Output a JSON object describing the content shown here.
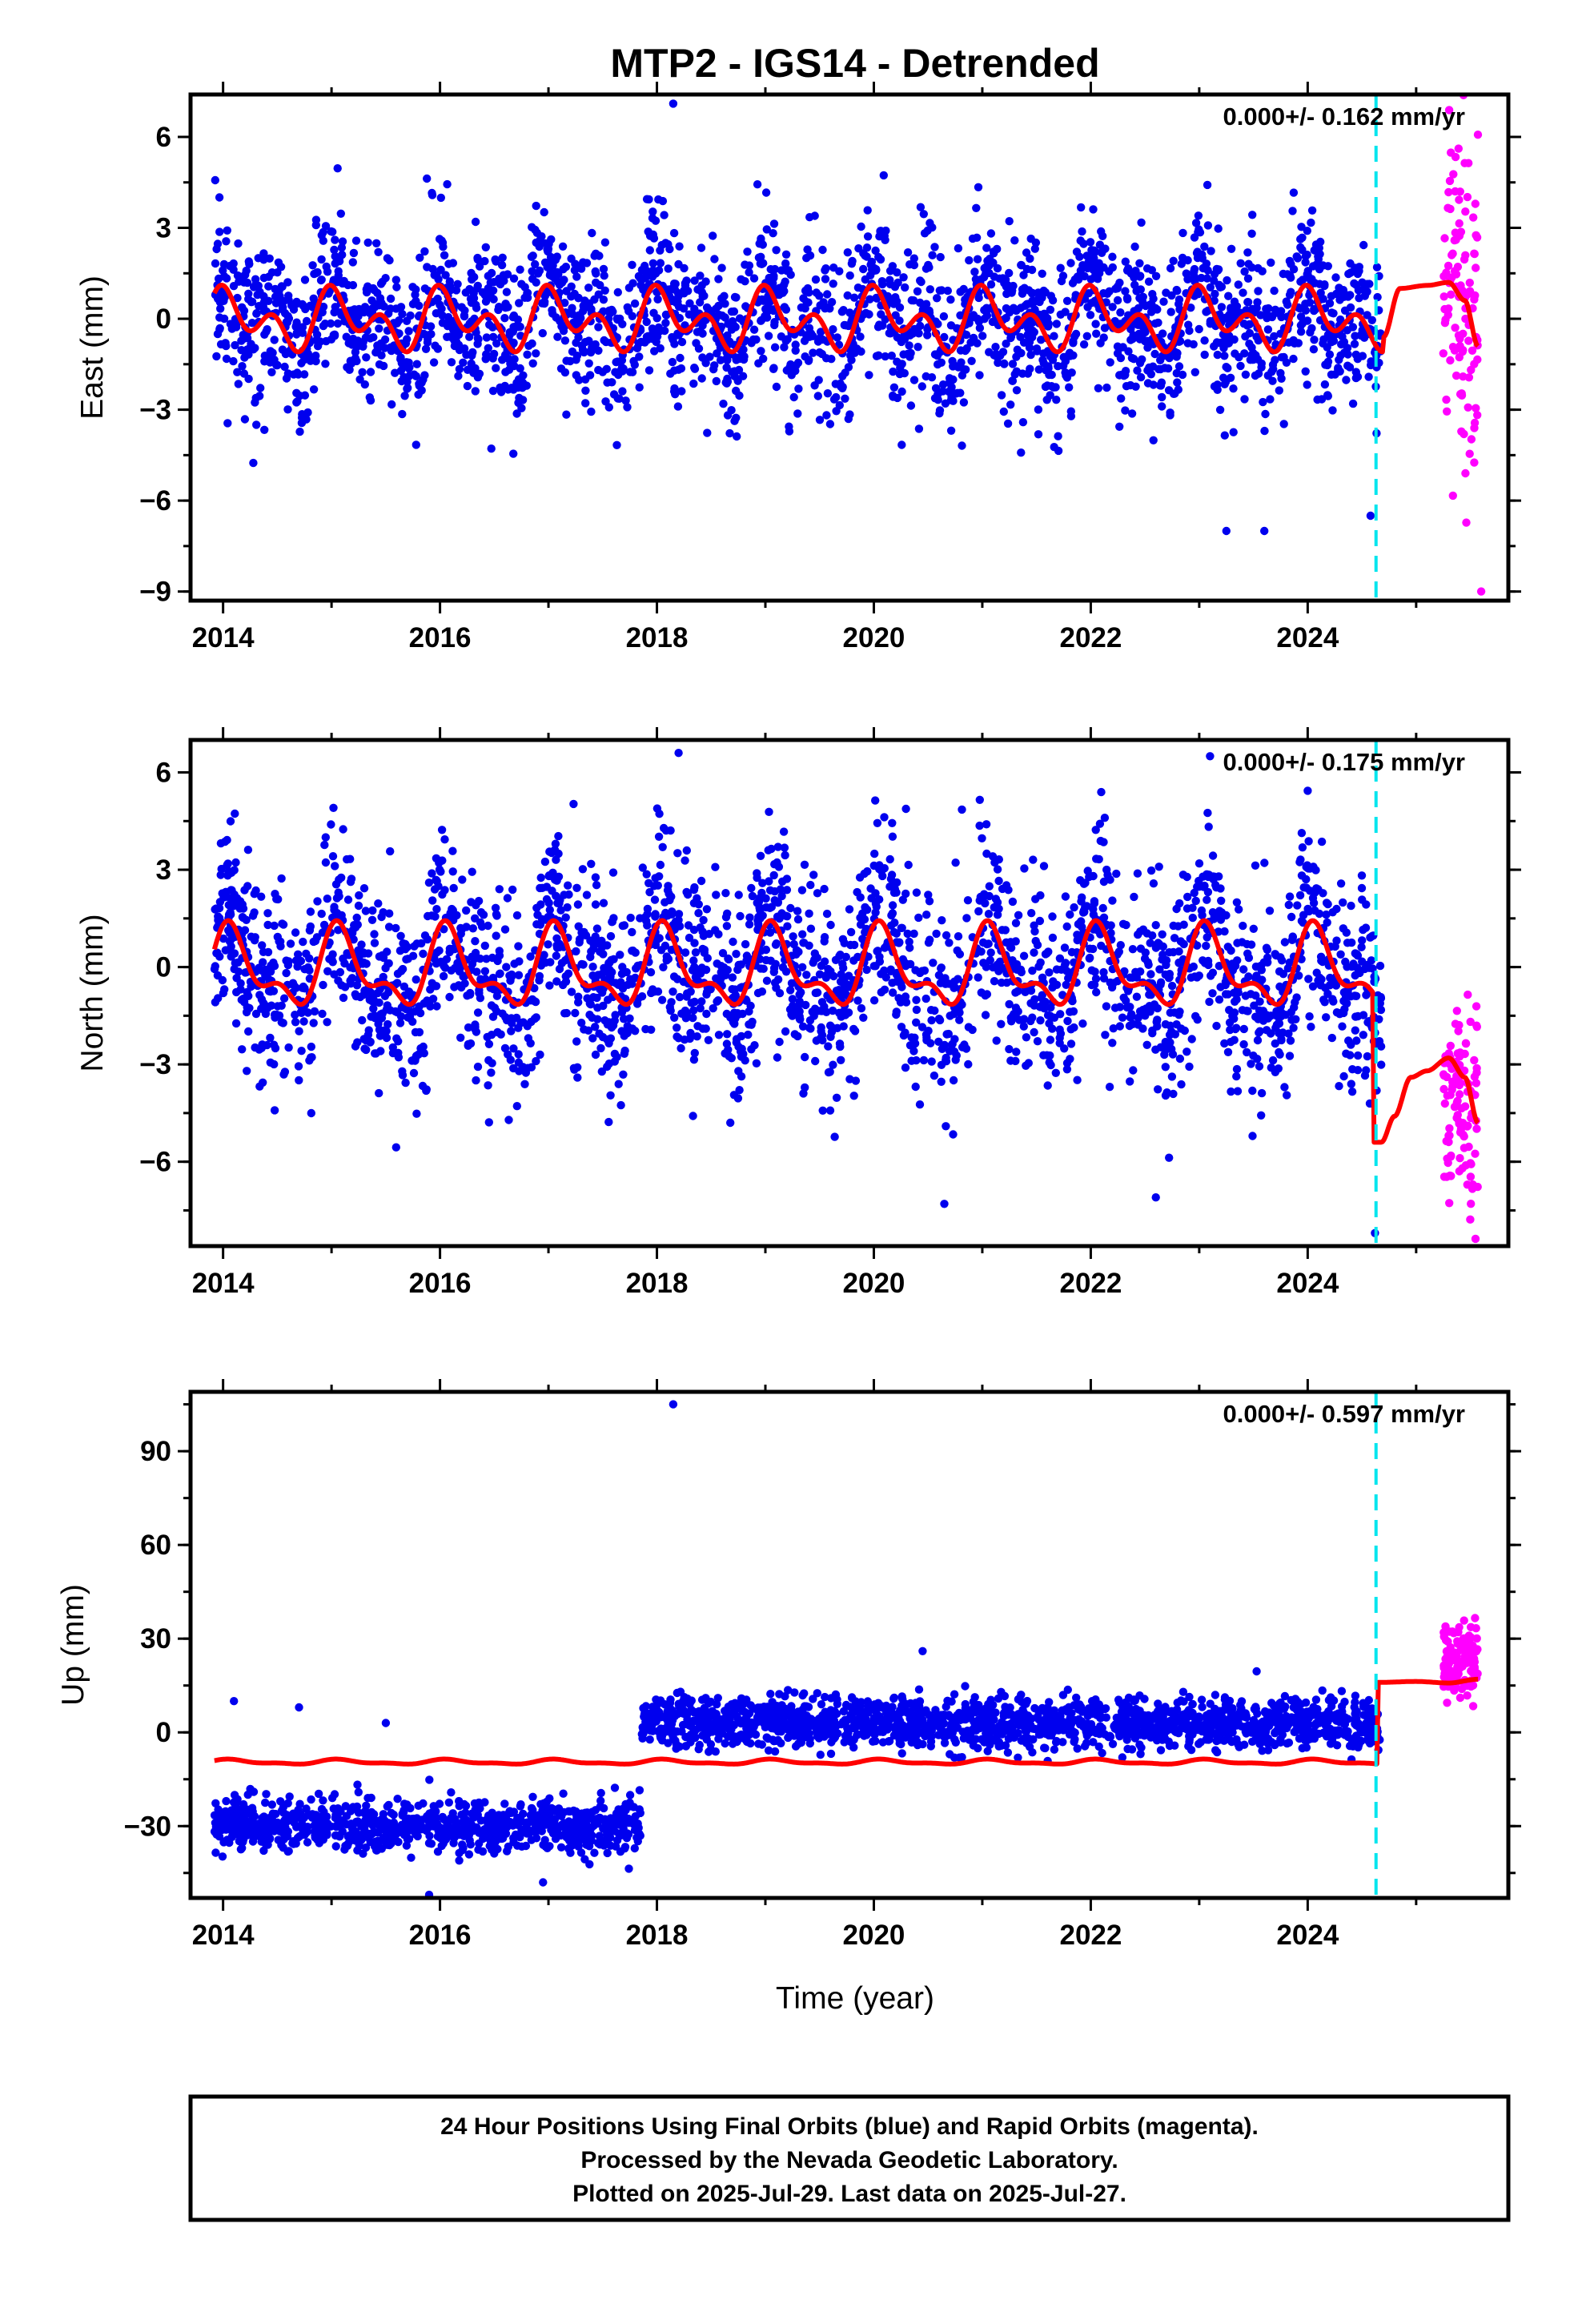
{
  "figure": {
    "title": "MTP2 - IGS14 - Detrended",
    "xlabel": "Time (year)",
    "colors": {
      "final_points": "#0000ee",
      "rapid_points": "#ff00ff",
      "model_line": "#ff0000",
      "event_line": "#00e5ee",
      "frame": "#000000"
    },
    "event_year": 2024.63,
    "footer": [
      "24 Hour Positions Using Final Orbits (blue) and Rapid Orbits (magenta).",
      "Processed by the Nevada Geodetic Laboratory.",
      "Plotted on 2025-Jul-29. Last data on 2025-Jul-27."
    ]
  },
  "chart_data": [
    {
      "type": "scatter",
      "component": "east",
      "ylabel": "East (mm)",
      "rate_annotation": "0.000+/- 0.162 mm/yr",
      "xlim": [
        2013.7,
        2025.85
      ],
      "ylim": [
        -9.3,
        7.4
      ],
      "xticks": [
        2014,
        2016,
        2018,
        2020,
        2022,
        2024
      ],
      "xtick_labels": [
        "2014",
        "2016",
        "2018",
        "2020",
        "2022",
        "2024"
      ],
      "yticks": [
        6,
        3,
        0,
        -3,
        -6,
        -9
      ],
      "ytick_labels": [
        "6",
        "3",
        "0",
        "−3",
        "−6",
        "−9"
      ],
      "final_range": [
        2013.92,
        2024.68
      ],
      "rapid_range": [
        2025.25,
        2025.57
      ],
      "series": [
        {
          "kind": "final",
          "mean_model": true,
          "scatter_sd": 1.3
        },
        {
          "kind": "rapid",
          "offset": 0.8,
          "scatter_sd": 2.5
        },
        {
          "kind": "model",
          "description_free": true
        }
      ],
      "model": {
        "mean": -0.05,
        "cos1": 0.55,
        "sin1": 0.25,
        "cos2": 0.6,
        "sin2": -0.25,
        "post_event": [
          [
            2024.7,
            -0.6
          ],
          [
            2024.85,
            1.0
          ],
          [
            2025.1,
            1.1
          ],
          [
            2025.3,
            1.2
          ],
          [
            2025.45,
            0.6
          ],
          [
            2025.57,
            -0.9
          ]
        ]
      },
      "outliers": [
        [
          2018.15,
          7.1
        ],
        [
          2024.58,
          -6.5
        ],
        [
          2023.25,
          -7.0
        ],
        [
          2023.6,
          -7.0
        ],
        [
          2025.6,
          -9.0
        ]
      ]
    },
    {
      "type": "scatter",
      "component": "north",
      "ylabel": "North (mm)",
      "rate_annotation": "0.000+/- 0.175 mm/yr",
      "xlim": [
        2013.7,
        2025.85
      ],
      "ylim": [
        -8.6,
        7.0
      ],
      "xticks": [
        2014,
        2016,
        2018,
        2020,
        2022,
        2024
      ],
      "xtick_labels": [
        "2014",
        "2016",
        "2018",
        "2020",
        "2022",
        "2024"
      ],
      "yticks": [
        6,
        3,
        0,
        -3,
        -6
      ],
      "ytick_labels": [
        "6",
        "3",
        "0",
        "−3",
        "−6"
      ],
      "final_range": [
        2013.92,
        2024.68
      ],
      "rapid_range": [
        2025.25,
        2025.57
      ],
      "series": [
        {
          "kind": "final",
          "scatter_sd": 1.5
        },
        {
          "kind": "rapid",
          "offset": -4.3,
          "scatter_sd": 1.4
        },
        {
          "kind": "model"
        }
      ],
      "model": {
        "mean": -0.1,
        "cos1": 0.9,
        "sin1": 0.5,
        "cos2": 0.5,
        "sin2": 0.2,
        "step_year": 2024.6,
        "step_to": -5.4,
        "post_event": [
          [
            2024.68,
            -5.4
          ],
          [
            2024.8,
            -4.6
          ],
          [
            2024.95,
            -3.4
          ],
          [
            2025.1,
            -3.2
          ],
          [
            2025.3,
            -2.8
          ],
          [
            2025.45,
            -3.4
          ],
          [
            2025.57,
            -4.8
          ]
        ]
      },
      "outliers": [
        [
          2018.2,
          6.6
        ],
        [
          2023.1,
          6.5
        ],
        [
          2020.65,
          -7.3
        ],
        [
          2022.6,
          -7.1
        ],
        [
          2024.62,
          -8.2
        ]
      ]
    },
    {
      "type": "scatter",
      "component": "up",
      "ylabel": "Up (mm)",
      "rate_annotation": "0.000+/- 0.597 mm/yr",
      "xlim": [
        2013.7,
        2025.85
      ],
      "ylim": [
        -53,
        109
      ],
      "xticks": [
        2014,
        2016,
        2018,
        2020,
        2022,
        2024
      ],
      "xtick_labels": [
        "2014",
        "2016",
        "2018",
        "2020",
        "2022",
        "2024"
      ],
      "yticks": [
        90,
        60,
        30,
        0,
        -30
      ],
      "ytick_labels": [
        "90",
        "60",
        "30",
        "0",
        "−30"
      ],
      "final_range": [
        2013.92,
        2024.68
      ],
      "rapid_range": [
        2025.25,
        2025.57
      ],
      "segments": [
        {
          "from": 2013.92,
          "to": 2017.85,
          "level": -30
        },
        {
          "from": 2017.85,
          "to": 2024.68,
          "level": 3
        }
      ],
      "series": [
        {
          "kind": "final",
          "scatter_sd": 4.0
        },
        {
          "kind": "rapid",
          "offset": 22,
          "scatter_sd": 6.0
        },
        {
          "kind": "model"
        }
      ],
      "model": {
        "mean": -9.5,
        "cos1": 0.6,
        "sin1": 0.3,
        "cos2": 0.3,
        "sin2": 0.1,
        "step_year": 2024.65,
        "step_to": 16,
        "post_event": [
          [
            2024.66,
            16
          ],
          [
            2025.0,
            16.3
          ],
          [
            2025.3,
            15.8
          ],
          [
            2025.57,
            17.0
          ]
        ]
      },
      "outliers": [
        [
          2018.15,
          105
        ],
        [
          2014.1,
          10
        ],
        [
          2014.7,
          8
        ],
        [
          2015.5,
          3
        ],
        [
          2020.45,
          26
        ],
        [
          2015.9,
          -52
        ],
        [
          2016.95,
          -48
        ]
      ]
    }
  ]
}
